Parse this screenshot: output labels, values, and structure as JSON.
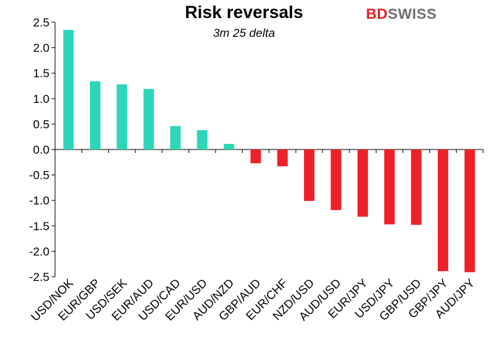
{
  "chart_data": {
    "type": "bar",
    "title": "Risk reversals",
    "subtitle": "3m 25 delta",
    "categories": [
      "USD/NOK",
      "EUR/GBP",
      "USD/SEK",
      "EUR/AUD",
      "USD/CAD",
      "EUR/USD",
      "AUD/NZD",
      "GBP/AUD",
      "EUR/CHF",
      "NZD/USD",
      "AUD/USD",
      "EUR/JPY",
      "USD/JPY",
      "GBP/USD",
      "GBP/JPY",
      "AUD/JPY"
    ],
    "values": [
      2.35,
      1.34,
      1.28,
      1.19,
      0.46,
      0.38,
      0.11,
      -0.27,
      -0.33,
      -1.01,
      -1.19,
      -1.32,
      -1.47,
      -1.48,
      -2.39,
      -2.41
    ],
    "ylim": [
      -2.5,
      2.5
    ],
    "yticks": [
      "2.5",
      "2.0",
      "1.5",
      "1.0",
      "0.5",
      "0.0",
      "-0.5",
      "-1.0",
      "-1.5",
      "-2.0",
      "-2.5"
    ],
    "ytick_values": [
      2.5,
      2.0,
      1.5,
      1.0,
      0.5,
      0.0,
      -0.5,
      -1.0,
      -1.5,
      -2.0,
      -2.5
    ],
    "grid": false,
    "legend": false,
    "colors": {
      "positive": "#2dd6b8",
      "negative": "#ee2128"
    }
  },
  "logo": {
    "part1": "BD",
    "part2": "SWISS"
  }
}
